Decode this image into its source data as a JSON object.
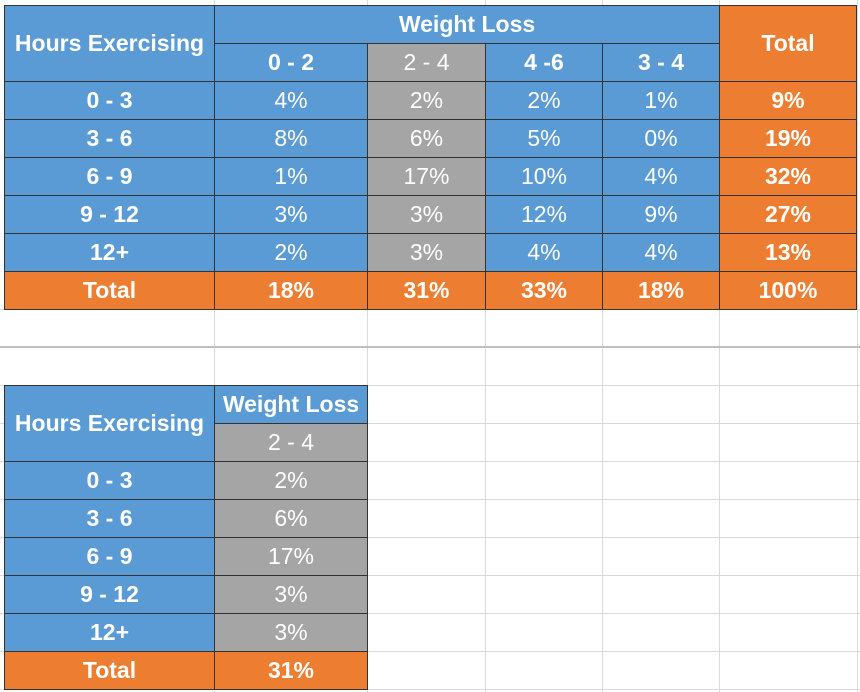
{
  "colors": {
    "blue": "#5b9bd5",
    "gray": "#a5a5a5",
    "orange": "#ed7d31",
    "text": "#ffffff",
    "border": "#333333",
    "gridline": "#d9d9d9"
  },
  "table1": {
    "row_header": "Hours Exercising",
    "group_header": "Weight Loss",
    "total_header": "Total",
    "columns": [
      "0 - 2",
      "2 - 4",
      "4 -6",
      "3 - 4"
    ],
    "rows": [
      {
        "label": "0 - 3",
        "values": [
          "4%",
          "2%",
          "2%",
          "1%"
        ],
        "total": "9%"
      },
      {
        "label": "3 - 6",
        "values": [
          "8%",
          "6%",
          "5%",
          "0%"
        ],
        "total": "19%"
      },
      {
        "label": "6 - 9",
        "values": [
          "1%",
          "17%",
          "10%",
          "4%"
        ],
        "total": "32%"
      },
      {
        "label": "9 - 12",
        "values": [
          "3%",
          "3%",
          "12%",
          "9%"
        ],
        "total": "27%"
      },
      {
        "label": "12+",
        "values": [
          "2%",
          "3%",
          "4%",
          "4%"
        ],
        "total": "13%"
      }
    ],
    "total_row": {
      "label": "Total",
      "values": [
        "18%",
        "31%",
        "33%",
        "18%"
      ],
      "total": "100%"
    }
  },
  "table2": {
    "row_header": "Hours Exercising",
    "group_header": "Weight Loss",
    "column": "2 - 4",
    "rows": [
      {
        "label": "0 - 3",
        "value": "2%"
      },
      {
        "label": "3 - 6",
        "value": "6%"
      },
      {
        "label": "6 - 9",
        "value": "17%"
      },
      {
        "label": "9 - 12",
        "value": "3%"
      },
      {
        "label": "12+",
        "value": "3%"
      }
    ],
    "total_row": {
      "label": "Total",
      "value": "31%"
    }
  }
}
